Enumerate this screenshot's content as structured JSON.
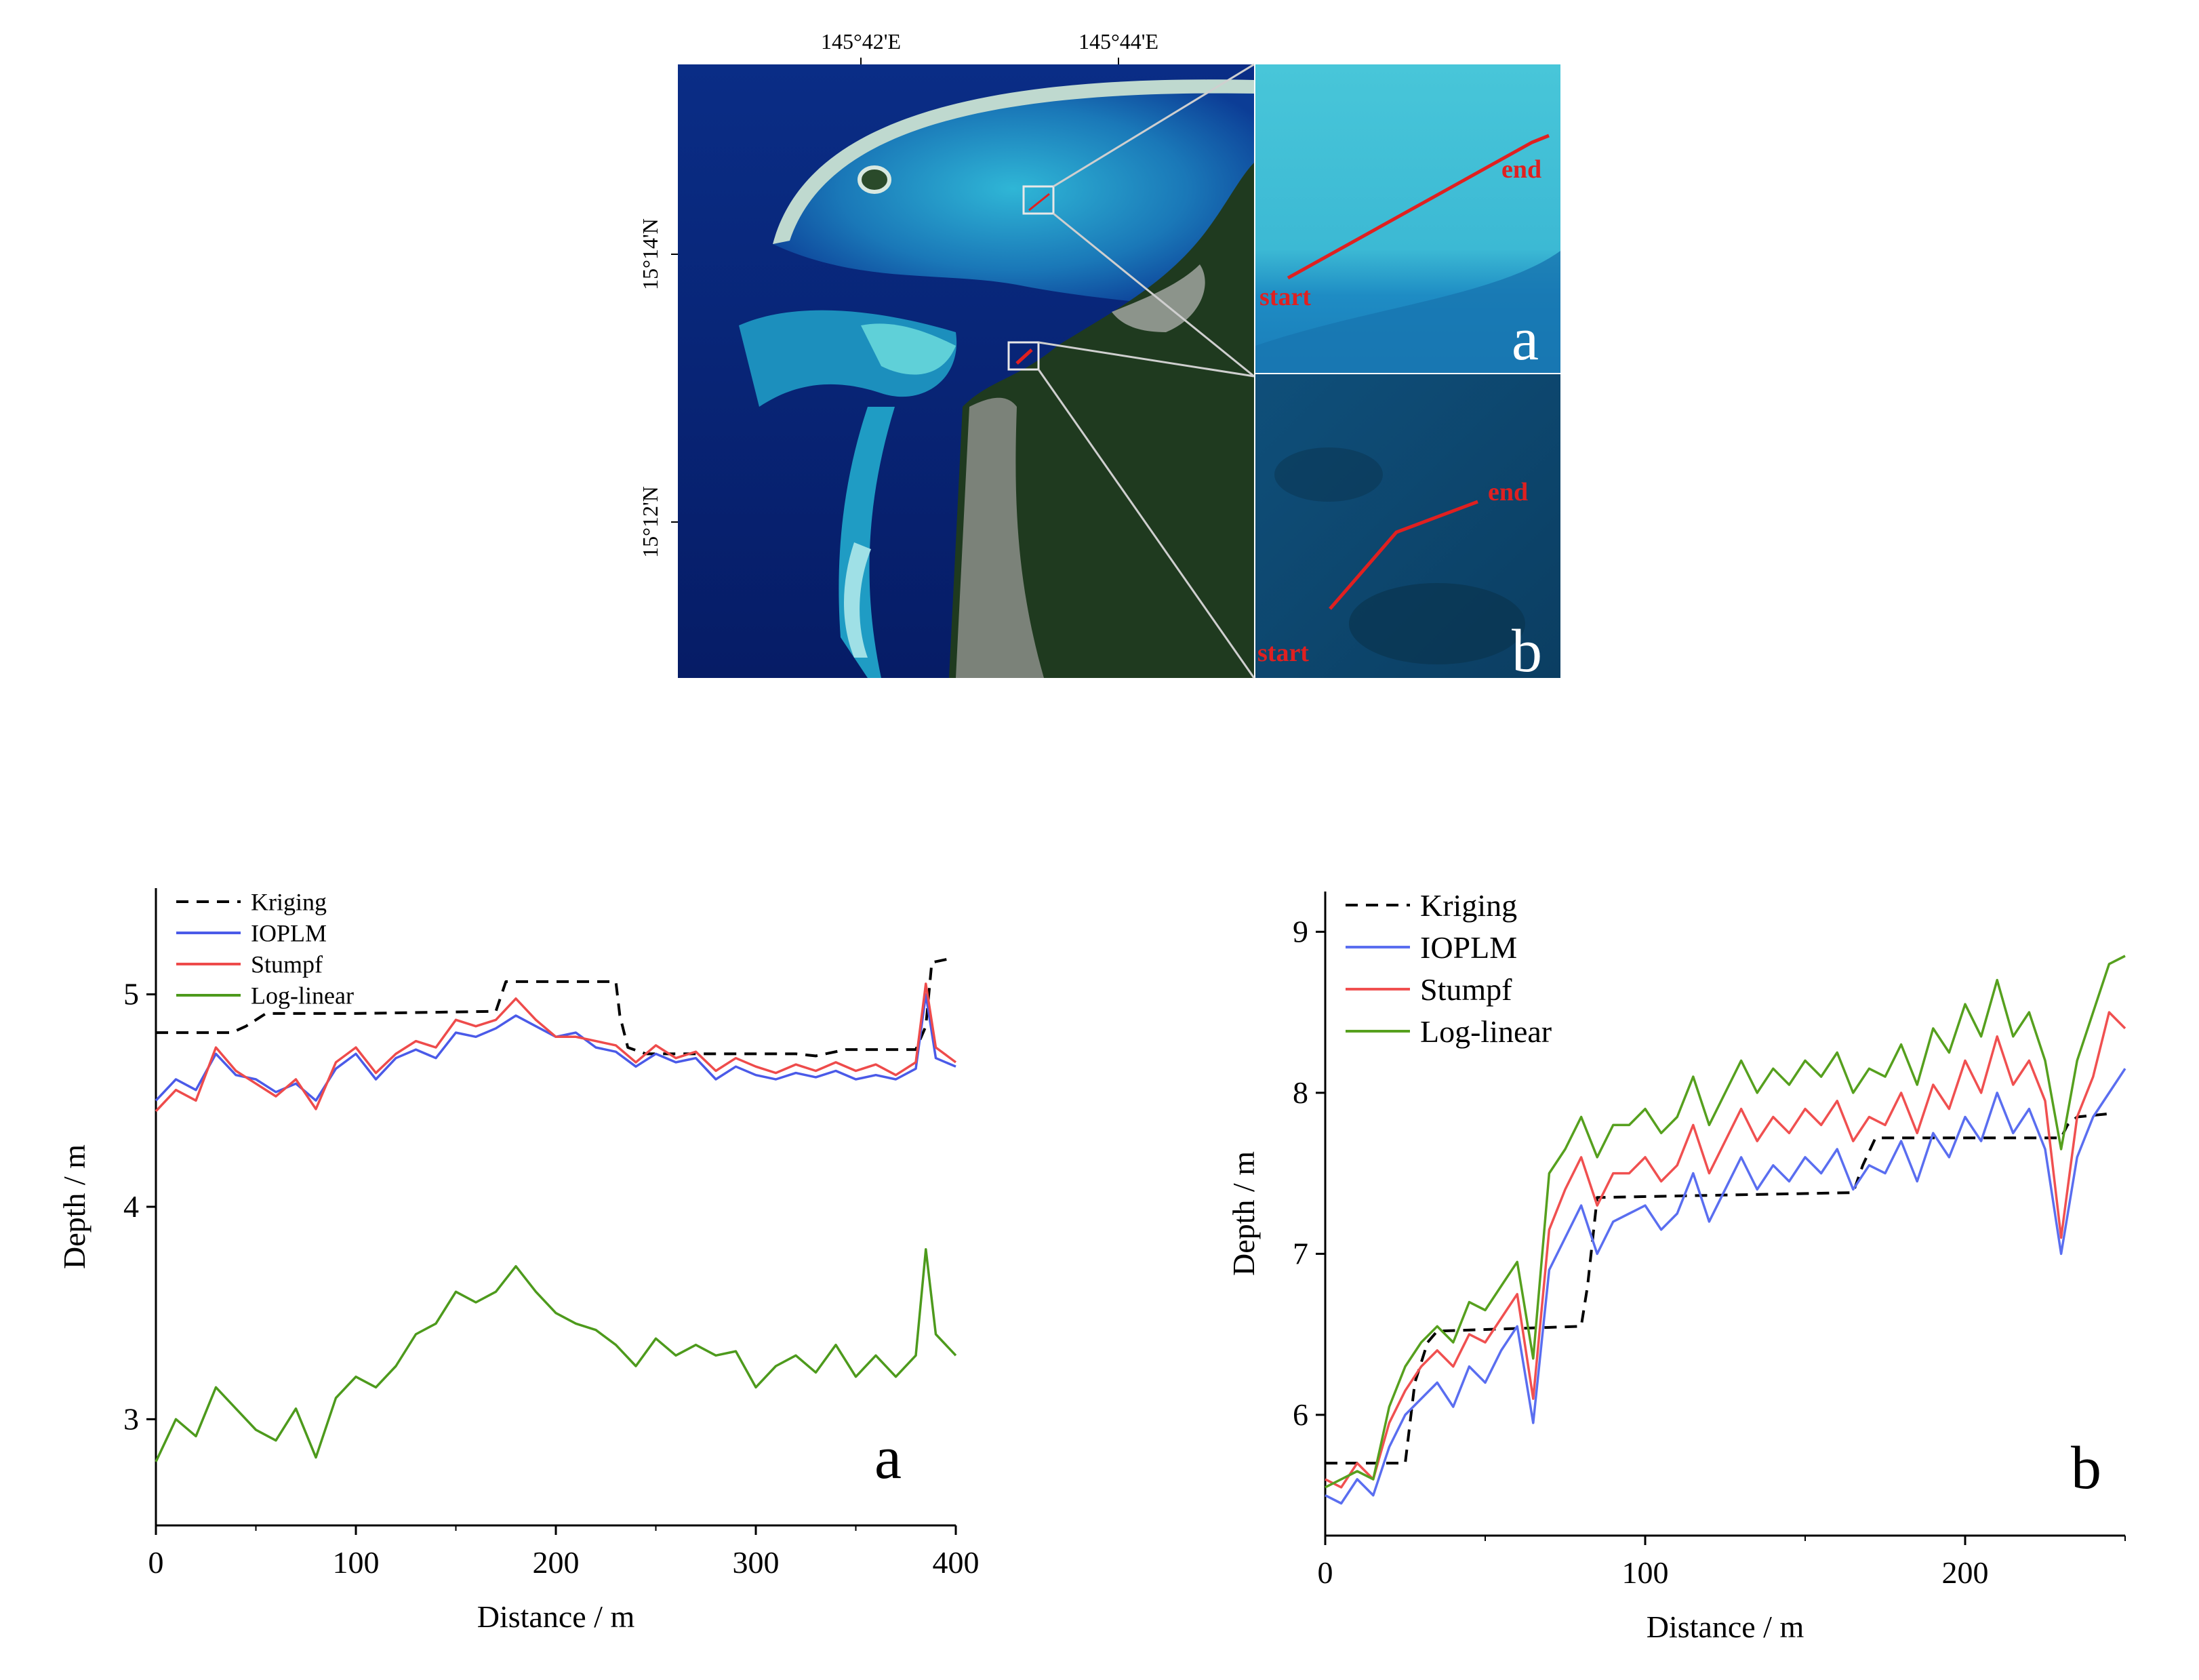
{
  "map": {
    "lon_labels": [
      "145°42'E",
      "145°44'E"
    ],
    "lat_labels": [
      "15°14'N",
      "15°12'N"
    ],
    "inset_a": {
      "start": "start",
      "end": "end",
      "letter": "a"
    },
    "inset_b": {
      "start": "start",
      "end": "end",
      "letter": "b"
    },
    "colors": {
      "transect": "#e02020",
      "deep_water": "#0a2a8a",
      "shallow_water": "#35c0d8",
      "land": "#1f3a1f"
    }
  },
  "chart_data": [
    {
      "type": "line",
      "panel_label": "a",
      "xlabel": "Distance / m",
      "ylabel": "Depth / m",
      "xlim": [
        0,
        400
      ],
      "ylim": [
        2.5,
        5.5
      ],
      "xticks": [
        0,
        100,
        200,
        300,
        400
      ],
      "yticks": [
        3,
        4,
        5
      ],
      "legend_position": "top-left",
      "grid": false,
      "x": [
        0,
        10,
        20,
        30,
        40,
        50,
        60,
        70,
        80,
        90,
        100,
        110,
        120,
        130,
        140,
        150,
        160,
        170,
        180,
        190,
        200,
        210,
        220,
        230,
        240,
        250,
        260,
        270,
        280,
        290,
        300,
        310,
        320,
        330,
        340,
        350,
        360,
        370,
        380,
        385,
        390,
        400
      ],
      "series": [
        {
          "name": "Kriging",
          "color": "#000000",
          "dash": true,
          "x": [
            0,
            38,
            45,
            55,
            100,
            170,
            175,
            230,
            232,
            236,
            245,
            320,
            330,
            345,
            380,
            385,
            388,
            398
          ],
          "values": [
            4.82,
            4.82,
            4.85,
            4.91,
            4.91,
            4.92,
            5.06,
            5.06,
            4.9,
            4.75,
            4.72,
            4.72,
            4.71,
            4.74,
            4.74,
            4.85,
            5.15,
            5.17
          ]
        },
        {
          "name": "IOPLM",
          "color": "#4a5ae8",
          "values": [
            4.5,
            4.6,
            4.55,
            4.72,
            4.62,
            4.6,
            4.54,
            4.58,
            4.5,
            4.65,
            4.72,
            4.6,
            4.7,
            4.74,
            4.7,
            4.82,
            4.8,
            4.84,
            4.9,
            4.85,
            4.8,
            4.82,
            4.75,
            4.73,
            4.66,
            4.72,
            4.68,
            4.7,
            4.6,
            4.66,
            4.62,
            4.6,
            4.63,
            4.61,
            4.64,
            4.6,
            4.62,
            4.6,
            4.65,
            5.0,
            4.7,
            4.66
          ]
        },
        {
          "name": "Stumpf",
          "color": "#ee4b4b",
          "values": [
            4.45,
            4.55,
            4.5,
            4.75,
            4.64,
            4.58,
            4.52,
            4.6,
            4.46,
            4.68,
            4.75,
            4.63,
            4.72,
            4.78,
            4.75,
            4.88,
            4.85,
            4.88,
            4.98,
            4.88,
            4.8,
            4.8,
            4.78,
            4.76,
            4.68,
            4.76,
            4.7,
            4.73,
            4.64,
            4.7,
            4.66,
            4.63,
            4.67,
            4.64,
            4.68,
            4.64,
            4.67,
            4.62,
            4.68,
            5.05,
            4.75,
            4.68
          ]
        },
        {
          "name": "Log-linear",
          "color": "#4d9a1c",
          "values": [
            2.8,
            3.0,
            2.92,
            3.15,
            3.05,
            2.95,
            2.9,
            3.05,
            2.82,
            3.1,
            3.2,
            3.15,
            3.25,
            3.4,
            3.45,
            3.6,
            3.55,
            3.6,
            3.72,
            3.6,
            3.5,
            3.45,
            3.42,
            3.35,
            3.25,
            3.38,
            3.3,
            3.35,
            3.3,
            3.32,
            3.15,
            3.25,
            3.3,
            3.22,
            3.35,
            3.2,
            3.3,
            3.2,
            3.3,
            3.8,
            3.4,
            3.3
          ]
        }
      ]
    },
    {
      "type": "line",
      "panel_label": "b",
      "xlabel": "Distance / m",
      "ylabel": "Depth / m",
      "xlim": [
        0,
        250
      ],
      "ylim": [
        5.25,
        9.25
      ],
      "xticks": [
        0,
        100,
        200
      ],
      "yticks": [
        6,
        7,
        8,
        9
      ],
      "legend_position": "top-left",
      "grid": false,
      "x": [
        0,
        5,
        10,
        15,
        20,
        25,
        30,
        35,
        40,
        45,
        50,
        55,
        60,
        65,
        70,
        75,
        80,
        85,
        90,
        95,
        100,
        105,
        110,
        115,
        120,
        125,
        130,
        135,
        140,
        145,
        150,
        155,
        160,
        165,
        170,
        175,
        180,
        185,
        190,
        195,
        200,
        205,
        210,
        215,
        220,
        225,
        230,
        235,
        240,
        245,
        250
      ],
      "series": [
        {
          "name": "Kriging",
          "color": "#000000",
          "dash": true,
          "x": [
            0,
            25,
            28,
            32,
            35,
            80,
            82,
            85,
            165,
            168,
            172,
            230,
            232,
            235,
            245
          ],
          "values": [
            5.7,
            5.7,
            6.2,
            6.45,
            6.52,
            6.55,
            6.8,
            7.35,
            7.38,
            7.55,
            7.72,
            7.72,
            7.8,
            7.85,
            7.87
          ]
        },
        {
          "name": "IOPLM",
          "color": "#5a6ef0",
          "values": [
            5.5,
            5.45,
            5.6,
            5.5,
            5.8,
            6.0,
            6.1,
            6.2,
            6.05,
            6.3,
            6.2,
            6.4,
            6.55,
            5.95,
            6.9,
            7.1,
            7.3,
            7.0,
            7.2,
            7.25,
            7.3,
            7.15,
            7.25,
            7.5,
            7.2,
            7.4,
            7.6,
            7.4,
            7.55,
            7.45,
            7.6,
            7.5,
            7.65,
            7.4,
            7.55,
            7.5,
            7.7,
            7.45,
            7.75,
            7.6,
            7.85,
            7.7,
            8.0,
            7.75,
            7.9,
            7.65,
            7.0,
            7.6,
            7.85,
            8.0,
            8.15
          ]
        },
        {
          "name": "Stumpf",
          "color": "#f05050",
          "values": [
            5.6,
            5.55,
            5.7,
            5.6,
            5.95,
            6.15,
            6.3,
            6.4,
            6.3,
            6.5,
            6.45,
            6.6,
            6.75,
            6.1,
            7.15,
            7.4,
            7.6,
            7.3,
            7.5,
            7.5,
            7.6,
            7.45,
            7.55,
            7.8,
            7.5,
            7.7,
            7.9,
            7.7,
            7.85,
            7.75,
            7.9,
            7.8,
            7.95,
            7.7,
            7.85,
            7.8,
            8.0,
            7.75,
            8.05,
            7.9,
            8.2,
            8.0,
            8.35,
            8.05,
            8.2,
            7.95,
            7.1,
            7.85,
            8.1,
            8.5,
            8.4
          ]
        },
        {
          "name": "Log-linear",
          "color": "#56a01e",
          "values": [
            5.55,
            5.6,
            5.65,
            5.6,
            6.05,
            6.3,
            6.45,
            6.55,
            6.45,
            6.7,
            6.65,
            6.8,
            6.95,
            6.35,
            7.5,
            7.65,
            7.85,
            7.6,
            7.8,
            7.8,
            7.9,
            7.75,
            7.85,
            8.1,
            7.8,
            8.0,
            8.2,
            8.0,
            8.15,
            8.05,
            8.2,
            8.1,
            8.25,
            8.0,
            8.15,
            8.1,
            8.3,
            8.05,
            8.4,
            8.25,
            8.55,
            8.35,
            8.7,
            8.35,
            8.5,
            8.2,
            7.65,
            8.2,
            8.5,
            8.8,
            8.85
          ]
        }
      ]
    }
  ]
}
